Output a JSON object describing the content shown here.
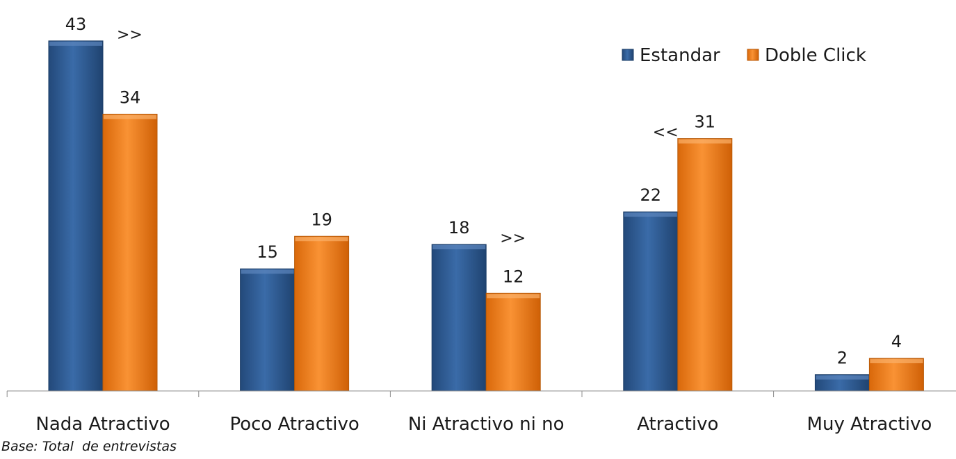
{
  "chart_data": {
    "type": "bar",
    "title": "",
    "xlabel": "",
    "ylabel": "",
    "ylim": [
      0,
      47
    ],
    "grid": false,
    "legend_position": "top-right",
    "categories": [
      "Nada Atractivo",
      "Poco Atractivo",
      "Ni Atractivo ni no",
      "Atractivo",
      "Muy Atractivo"
    ],
    "series": [
      {
        "name": "Estandar",
        "color": "#2C5A92",
        "values": [
          43,
          15,
          18,
          22,
          2
        ]
      },
      {
        "name": "Doble Click",
        "color": "#F07D17",
        "values": [
          34,
          19,
          12,
          31,
          4
        ]
      }
    ],
    "annotations": [
      {
        "text": ">>",
        "category": "Nada Atractivo",
        "series": "Estandar"
      },
      {
        "text": ">>",
        "category": "Ni Atractivo ni no",
        "series": "Estandar"
      },
      {
        "text": "<<",
        "category": "Atractivo",
        "series": "Doble Click"
      }
    ]
  },
  "footnote": "Base: Total  de entrevistas"
}
